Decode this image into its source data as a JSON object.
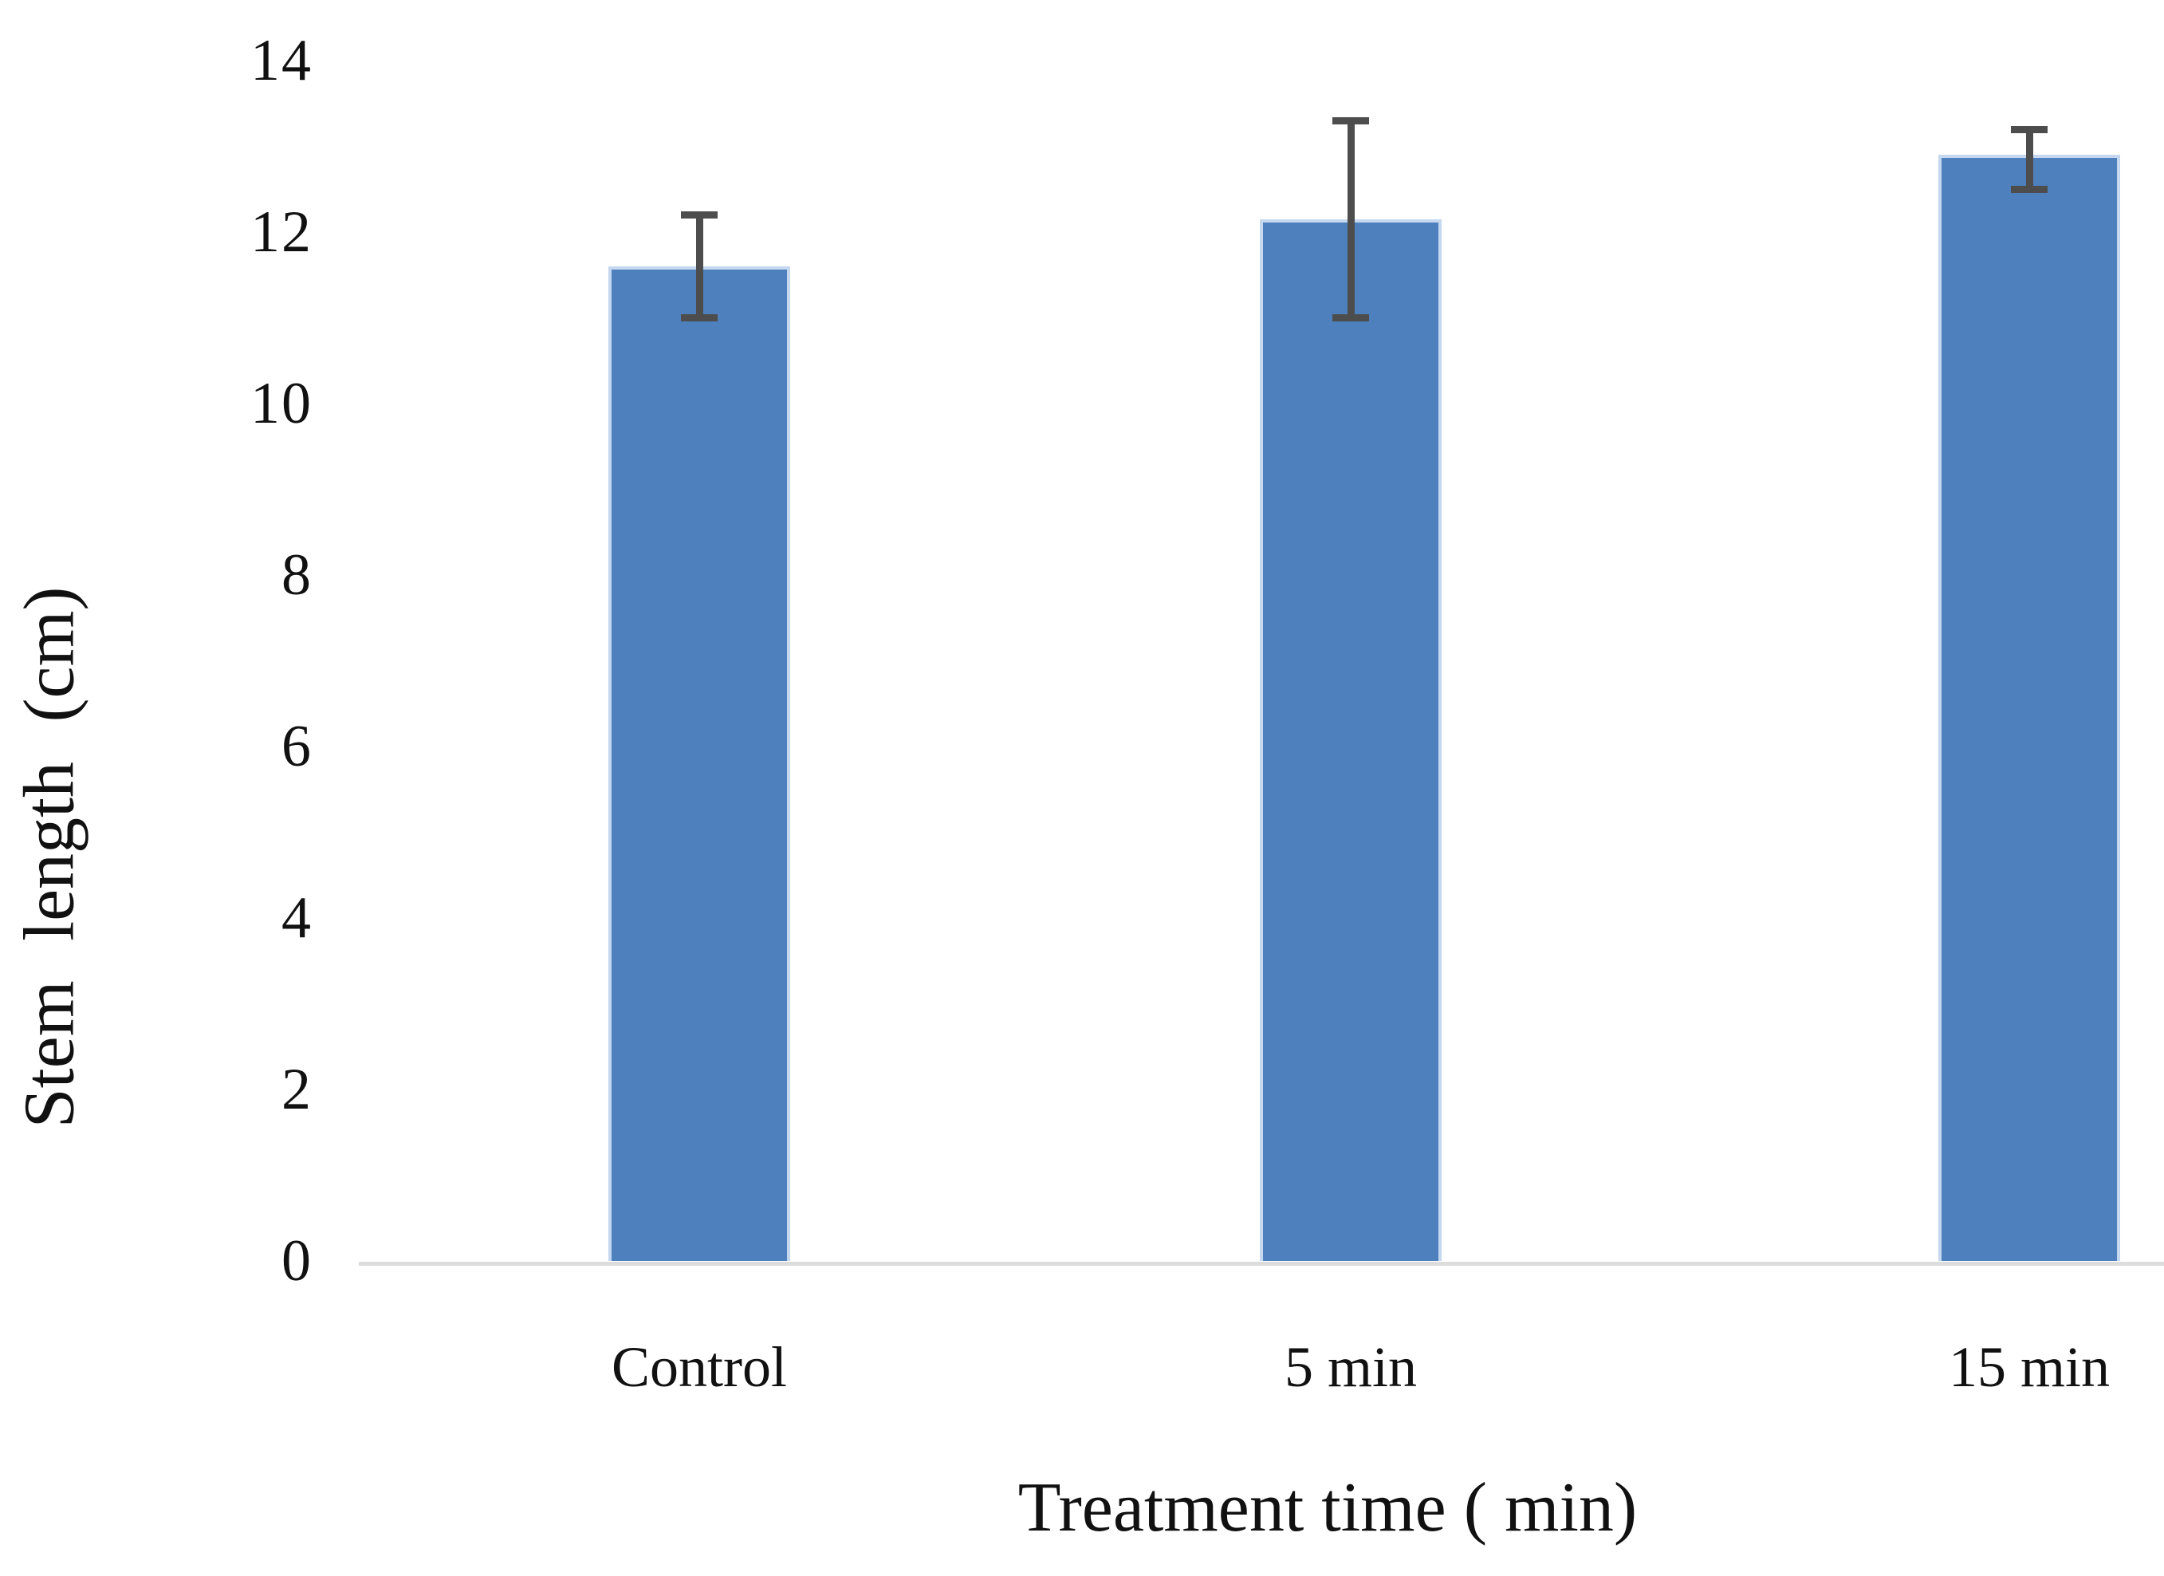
{
  "chart_data": {
    "type": "bar",
    "title": "",
    "xlabel": "Treatment time ( min)",
    "ylabel": "Stem length (cm)",
    "categories": [
      "Control",
      "5 min",
      "15 min"
    ],
    "values": [
      11.6,
      12.15,
      12.9
    ],
    "error_bars": {
      "low": [
        11.0,
        11.0,
        12.5
      ],
      "high": [
        12.2,
        13.3,
        13.2
      ]
    },
    "ylim": [
      0,
      14
    ],
    "yticks": [
      14,
      12,
      10,
      8,
      6,
      4,
      2,
      0
    ],
    "grid": false,
    "legend": null,
    "colors": {
      "bar_fill": "#4d80bd",
      "bar_edge": "#c5d8ef",
      "error_bar": "#4d4d4d",
      "axis_line": "#dcdcdc",
      "text": "#111111"
    }
  }
}
